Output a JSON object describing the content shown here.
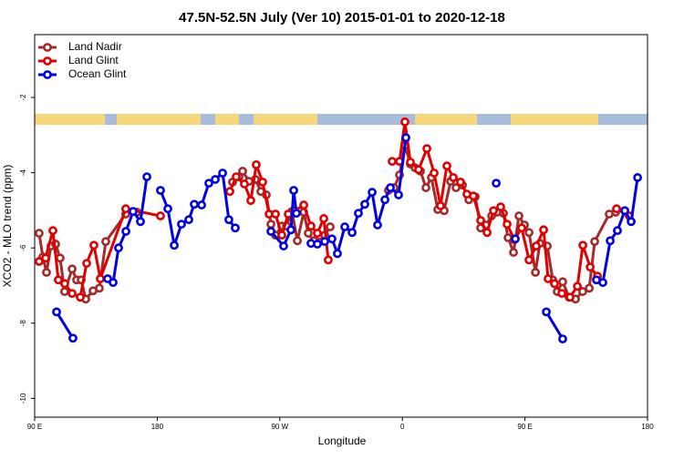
{
  "chart_data": {
    "type": "line",
    "title": "47.5N-52.5N July (Ver 10)   2015-01-01 to 2020-12-18",
    "x_label": "Longitude",
    "y_label": "XCO2 - MLO trend (ppm)",
    "xlim": [
      90,
      540
    ],
    "ylim": [
      -10.5,
      -0.33
    ],
    "xticks": [
      {
        "value": 90,
        "label": "90 E"
      },
      {
        "value": 180,
        "label": "180"
      },
      {
        "value": 270,
        "label": "90 W"
      },
      {
        "value": 360,
        "label": "0"
      },
      {
        "value": 450,
        "label": "90 E"
      },
      {
        "value": 540,
        "label": "180"
      }
    ],
    "yticks": [
      -10,
      -8,
      -6,
      -4,
      -2
    ],
    "legend": "top-left",
    "series": [
      {
        "name": "Land Nadir",
        "color": "#a52a2a",
        "x": [
          93.3,
          96,
          98.7,
          102,
          105.4,
          108.7,
          112,
          117.5,
          120.8,
          124.2,
          127.5,
          132.9,
          137.5,
          142.2,
          156.9,
          165,
          null,
          235.3,
          240,
          242.7,
          247.4,
          252.1,
          256.1,
          260.1,
          263.5,
          266.8,
          271.5,
          274.9,
          278.9,
          282.9,
          287.6,
          290.9,
          294.9,
          299,
          303,
          307,
          null,
          349.8,
          353.9,
          357.9,
          361.9,
          365.9,
          369.3,
          373.3,
          377.3,
          381.3,
          386,
          390.7,
          395.4,
          399.4,
          404.1,
          408.8,
          413.5,
          417.5,
          421.5,
          425.5,
          429.5,
          434.2,
          437.6,
          441.6,
          445.6,
          449.6,
          453,
          457.7,
          461,
          466.4,
          470.4,
          473.7,
          477.7,
          482.4,
          487.1,
          492.4,
          497.2,
          501.2,
          511.9,
          516.6
        ],
        "values": [
          -5.61,
          -6.24,
          -6.65,
          -5.95,
          -5.9,
          -6.27,
          -7.16,
          -6.56,
          -6.85,
          -6.85,
          -7.36,
          -7.14,
          -7.07,
          -5.83,
          -5.1,
          -5.05,
          null,
          -4.25,
          -4.11,
          -3.96,
          -4.23,
          -4.18,
          -4.5,
          -4.59,
          -5.37,
          -5.66,
          -5.42,
          -5.42,
          -5.03,
          -5.81,
          -5.05,
          -5.61,
          -5.81,
          -5.68,
          -5.66,
          -5.44,
          null,
          -4.47,
          -4.4,
          -4.06,
          -3.28,
          -3.77,
          -3.87,
          -3.96,
          -4.4,
          -4.13,
          -4.98,
          -5.01,
          -4.23,
          -4.4,
          -4.33,
          -4.72,
          -4.64,
          -5.47,
          -5.39,
          -5.15,
          -5.05,
          -5.08,
          -5.73,
          -6.12,
          -5.15,
          -5.39,
          -5.59,
          -6.65,
          -5.88,
          -5.95,
          -6.85,
          -7.16,
          -6.9,
          -7.31,
          -7.36,
          -7.16,
          -7.07,
          -5.83,
          -5.1,
          -5.05
        ]
      },
      {
        "name": "Land Glint",
        "color": "#e00000",
        "x": [
          93.3,
          98,
          103.4,
          107.4,
          112.1,
          117.5,
          123.5,
          128.2,
          133.5,
          138.2,
          156.9,
          182.4,
          null,
          233.3,
          238,
          244,
          248.7,
          252.7,
          257.4,
          262.1,
          266.8,
          271.5,
          276.2,
          280.9,
          287.6,
          292.9,
          297.6,
          302.3,
          305.6,
          null,
          352.5,
          357.9,
          361.9,
          365.9,
          371.9,
          378,
          383.3,
          388,
          392.7,
          397.4,
          402.7,
          407.4,
          412.1,
          417.5,
          422.2,
          426.9,
          432.2,
          436.9,
          442.3,
          447.6,
          453,
          458.3,
          463.7,
          467,
          471.7,
          477.1,
          483.1,
          488.5,
          492.5,
          497.9,
          503.2,
          null,
          517.3,
          526.6
        ],
        "values": [
          -6.36,
          -6.27,
          -5.54,
          -6.85,
          -6.95,
          -7.21,
          -7.31,
          -6.41,
          -5.93,
          -6.82,
          -4.96,
          -5.15,
          null,
          -4.5,
          -4.11,
          -4.3,
          -4.74,
          -3.79,
          -4.25,
          -5.1,
          -5.1,
          -5.66,
          -5.1,
          -5.01,
          -4.86,
          -5.42,
          -5.61,
          -5.22,
          -6.32,
          null,
          -3.7,
          -3.7,
          -2.65,
          -3.72,
          -3.92,
          -3.36,
          -4.01,
          -4.88,
          -3.82,
          -4.13,
          -4.25,
          -4.57,
          -4.62,
          -5.27,
          -5.59,
          -5.01,
          -4.91,
          -5.37,
          -5.78,
          -5.47,
          -6.32,
          -5.95,
          -5.52,
          -6.82,
          -6.95,
          -7.21,
          -7.31,
          -7.02,
          -5.93,
          -6.51,
          -6.75,
          null,
          -4.96,
          -5.15
        ]
      },
      {
        "name": "Ocean Glint",
        "color": "#0000e0",
        "x": [
          106.1,
          118.1,
          null,
          143.6,
          147.6,
          151.6,
          157,
          162.3,
          167.7,
          172.4,
          null,
          182.4,
          187.8,
          192.5,
          197.8,
          203.2,
          207.2,
          212.6,
          217.9,
          222.6,
          228,
          232.6,
          237.3,
          null,
          263.5,
          272.8,
          278.2,
          280.2,
          282.2,
          null,
          292.9,
          297.6,
          303,
          308.3,
          312.3,
          317.7,
          323.1,
          327.7,
          332.4,
          337.8,
          341.8,
          347.2,
          351.2,
          357.2,
          362.6,
          null,
          428.9,
          null,
          442.9,
          null,
          465.7,
          477.7,
          null,
          502.5,
          507.2,
          512.6,
          517.9,
          523.3,
          528,
          532.7
        ],
        "values": [
          -7.7,
          -8.4,
          null,
          -6.82,
          -6.92,
          -6,
          -5.56,
          -5.03,
          -5.3,
          -4.11,
          null,
          -4.47,
          -4.96,
          -5.93,
          -5.37,
          -5.25,
          -4.84,
          -4.86,
          -4.28,
          -4.18,
          -4.01,
          -5.25,
          -5.47,
          null,
          -5.56,
          -5.95,
          -5.52,
          -4.47,
          -5.08,
          null,
          -5.88,
          -5.9,
          -5.83,
          -5.76,
          -6.15,
          -5.44,
          -5.59,
          -5.08,
          -4.84,
          -4.52,
          -5.39,
          -4.72,
          -4.4,
          -4.59,
          -3.07,
          null,
          -4.28,
          null,
          -5.76,
          null,
          -7.7,
          -8.42,
          null,
          -6.85,
          -6.92,
          -5.81,
          -5.54,
          -5.01,
          -5.3,
          -4.13
        ]
      }
    ]
  }
}
